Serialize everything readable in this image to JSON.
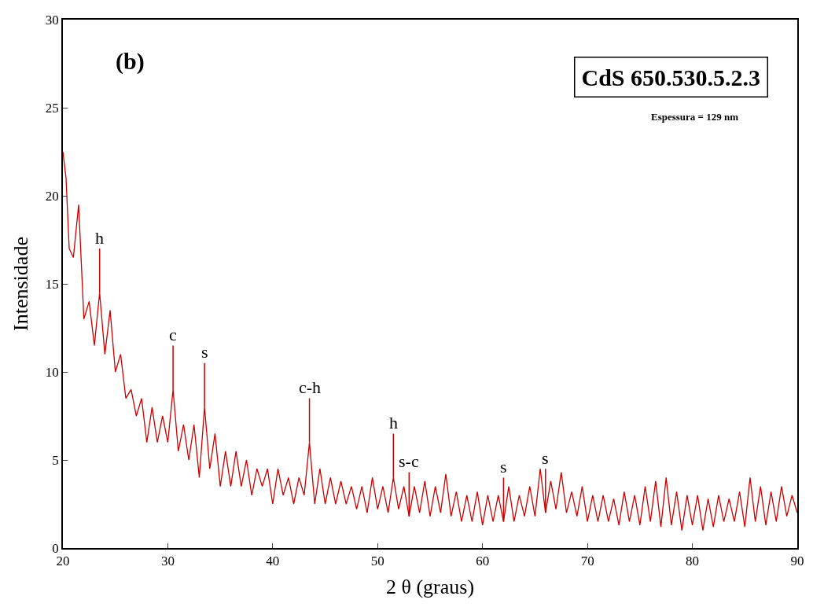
{
  "chart_data": {
    "type": "line",
    "xlabel": "2 θ (graus)",
    "ylabel": "Intensidade",
    "x": [
      20,
      20.3,
      20.6,
      21,
      21.5,
      22,
      22.5,
      23,
      23.5,
      24,
      24.5,
      25,
      25.5,
      26,
      26.5,
      27,
      27.5,
      28,
      28.5,
      29,
      29.5,
      30,
      30.5,
      31,
      31.5,
      32,
      32.5,
      33,
      33.5,
      34,
      34.5,
      35,
      35.5,
      36,
      36.5,
      37,
      37.5,
      38,
      38.5,
      39,
      39.5,
      40,
      40.5,
      41,
      41.5,
      42,
      42.5,
      43,
      43.5,
      44,
      44.5,
      45,
      45.5,
      46,
      46.5,
      47,
      47.5,
      48,
      48.5,
      49,
      49.5,
      50,
      50.5,
      51,
      51.5,
      52,
      52.5,
      53,
      53.5,
      54,
      54.5,
      55,
      55.5,
      56,
      56.5,
      57,
      57.5,
      58,
      58.5,
      59,
      59.5,
      60,
      60.5,
      61,
      61.5,
      62,
      62.5,
      63,
      63.5,
      64,
      64.5,
      65,
      65.5,
      66,
      66.5,
      67,
      67.5,
      68,
      68.5,
      69,
      69.5,
      70,
      70.5,
      71,
      71.5,
      72,
      72.5,
      73,
      73.5,
      74,
      74.5,
      75,
      75.5,
      76,
      76.5,
      77,
      77.5,
      78,
      78.5,
      79,
      79.5,
      80,
      80.5,
      81,
      81.5,
      82,
      82.5,
      83,
      83.5,
      84,
      84.5,
      85,
      85.5,
      86,
      86.5,
      87,
      87.5,
      88,
      88.5,
      89,
      89.5,
      90
    ],
    "series": [
      {
        "color": "#cc0000",
        "values": [
          22.5,
          21,
          17,
          16.5,
          19.5,
          13,
          14,
          11.5,
          14.5,
          11,
          13.5,
          10,
          11,
          8.5,
          9,
          7.5,
          8.5,
          6,
          8,
          6,
          7.5,
          6,
          9,
          5.5,
          7,
          5,
          7,
          4,
          8,
          4.5,
          6.5,
          3.5,
          5.5,
          3.5,
          5.5,
          3.5,
          5,
          3,
          4.5,
          3.5,
          4.5,
          2.5,
          4.5,
          3,
          4,
          2.5,
          4,
          3,
          6,
          2.5,
          4.5,
          2.5,
          4,
          2.5,
          3.8,
          2.5,
          3.5,
          2.2,
          3.5,
          2,
          4,
          2.2,
          3.5,
          2,
          4,
          2.2,
          3.5,
          1.8,
          3.5,
          2,
          3.8,
          1.8,
          3.5,
          2,
          4.2,
          1.8,
          3.2,
          1.5,
          3,
          1.5,
          3.2,
          1.3,
          3,
          1.5,
          3,
          1.5,
          3.5,
          1.5,
          3,
          1.8,
          3.5,
          1.8,
          4.5,
          2,
          3.8,
          2.2,
          4.3,
          2,
          3.2,
          1.8,
          3.5,
          1.5,
          3,
          1.5,
          3,
          1.5,
          2.8,
          1.3,
          3.2,
          1.5,
          3,
          1.3,
          3.5,
          1.5,
          3.8,
          1.2,
          4,
          1.3,
          3.2,
          1,
          3,
          1.3,
          3,
          1,
          2.8,
          1.2,
          3,
          1.5,
          2.8,
          1.5,
          3.2,
          1.2,
          4,
          1.5,
          3.5,
          1.3,
          3.2,
          1.5,
          3.5,
          1.8,
          3,
          2
        ]
      }
    ],
    "xlim": [
      20,
      90
    ],
    "xticks": [
      20,
      30,
      40,
      50,
      60,
      70,
      80,
      90
    ],
    "ylim": [
      0,
      30
    ],
    "yticks": [
      0,
      5,
      10,
      15,
      20,
      25,
      30
    ],
    "line_style": "solid",
    "marker": "none",
    "annotations": [
      "(b)",
      "CdS 650.530.5.2.3",
      "Espessura = 129 nm",
      {
        "text": "h",
        "x": 23.5,
        "y": 14.5
      },
      {
        "text": "c",
        "x": 30.5,
        "y": 9
      },
      {
        "text": "s",
        "x": 33.5,
        "y": 8
      },
      {
        "text": "c-h",
        "x": 43.5,
        "y": 6
      },
      {
        "text": "h",
        "x": 51.5,
        "y": 4
      },
      {
        "text": "s-c",
        "x": 53,
        "y": 1.8
      },
      {
        "text": "s",
        "x": 62,
        "y": 1.5
      },
      {
        "text": "s",
        "x": 66,
        "y": 2
      }
    ]
  }
}
